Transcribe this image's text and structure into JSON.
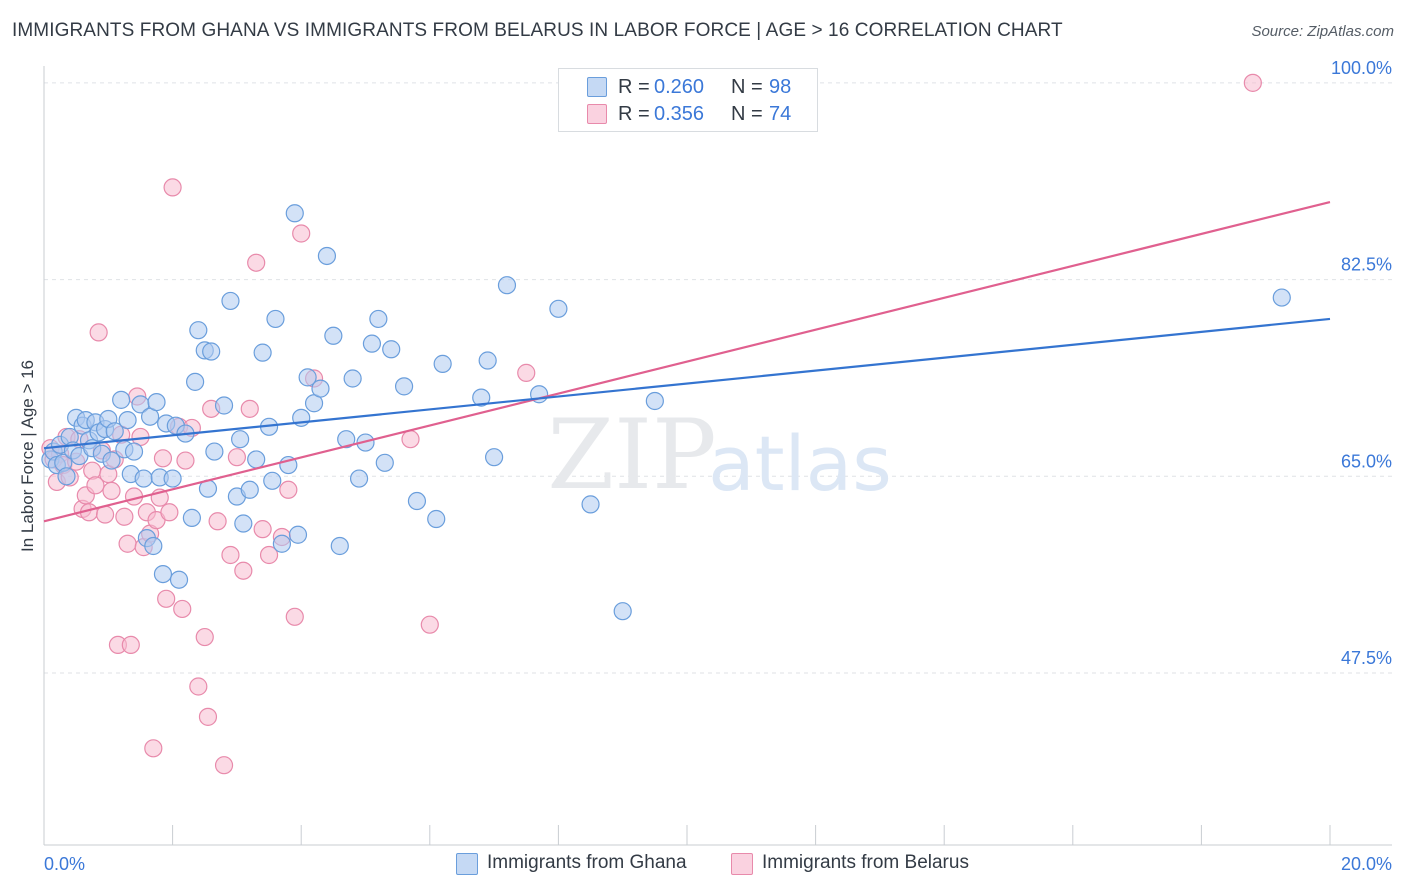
{
  "header": {
    "title": "IMMIGRANTS FROM GHANA VS IMMIGRANTS FROM BELARUS IN LABOR FORCE | AGE > 16 CORRELATION CHART",
    "source": "Source: ZipAtlas.com"
  },
  "watermark": {
    "zip": "ZIP",
    "atlas": "atlas"
  },
  "legend": {
    "r_label": "R =",
    "n_label": "N =",
    "series": [
      {
        "r": "0.260",
        "n": "98"
      },
      {
        "r": "0.356",
        "n": "74"
      }
    ]
  },
  "bottom_legend": {
    "ghana": "Immigrants from Ghana",
    "belarus": "Immigrants from Belarus"
  },
  "colors": {
    "ghana_fill": "#aecbf0",
    "ghana_stroke": "#6a9edc",
    "ghana_line": "#3474d0",
    "belarus_fill": "#f7bcd0",
    "belarus_stroke": "#e88aab",
    "belarus_line": "#e0608f",
    "tick_label": "#3b78d8",
    "grid": "#dfe2e6"
  },
  "chart_data": {
    "type": "scatter",
    "title": "IMMIGRANTS FROM GHANA VS IMMIGRANTS FROM BELARUS IN LABOR FORCE | AGE > 16 CORRELATION CHART",
    "xlabel": "",
    "ylabel": "In Labor Force | Age > 16",
    "xlim": [
      0,
      20
    ],
    "ylim": [
      32.2,
      101.5
    ],
    "x_tick_labels": [
      "0.0%",
      "20.0%"
    ],
    "y_ticks": [
      47.5,
      65.0,
      82.5,
      100.0
    ],
    "y_tick_labels": [
      "47.5%",
      "65.0%",
      "82.5%",
      "100.0%"
    ],
    "grid": "horizontal dashed",
    "legend_position": "top-center",
    "series": [
      {
        "name": "Immigrants from Ghana",
        "r": 0.26,
        "n": 98,
        "trend": {
          "x": [
            0,
            20
          ],
          "y": [
            67.5,
            79.0
          ]
        },
        "points": [
          [
            0.1,
            66.5
          ],
          [
            0.15,
            67.2
          ],
          [
            0.2,
            66.0
          ],
          [
            0.25,
            67.8
          ],
          [
            0.3,
            66.2
          ],
          [
            0.35,
            65.0
          ],
          [
            0.4,
            68.5
          ],
          [
            0.45,
            67.3
          ],
          [
            0.5,
            70.2
          ],
          [
            0.55,
            66.8
          ],
          [
            0.6,
            69.5
          ],
          [
            0.65,
            70.0
          ],
          [
            0.7,
            68.2
          ],
          [
            0.75,
            67.5
          ],
          [
            0.8,
            69.8
          ],
          [
            0.85,
            68.9
          ],
          [
            0.9,
            67.0
          ],
          [
            0.95,
            69.2
          ],
          [
            1.0,
            70.1
          ],
          [
            1.05,
            66.4
          ],
          [
            1.1,
            69.0
          ],
          [
            1.2,
            71.8
          ],
          [
            1.25,
            67.4
          ],
          [
            1.3,
            70.0
          ],
          [
            1.35,
            65.2
          ],
          [
            1.4,
            67.2
          ],
          [
            1.5,
            71.4
          ],
          [
            1.55,
            64.8
          ],
          [
            1.6,
            59.5
          ],
          [
            1.65,
            70.3
          ],
          [
            1.7,
            58.8
          ],
          [
            1.75,
            71.6
          ],
          [
            1.8,
            64.9
          ],
          [
            1.85,
            56.3
          ],
          [
            1.9,
            69.7
          ],
          [
            2.0,
            64.8
          ],
          [
            2.05,
            69.5
          ],
          [
            2.1,
            55.8
          ],
          [
            2.2,
            68.8
          ],
          [
            2.3,
            61.3
          ],
          [
            2.35,
            73.4
          ],
          [
            2.4,
            78.0
          ],
          [
            2.5,
            76.2
          ],
          [
            2.55,
            63.9
          ],
          [
            2.6,
            76.1
          ],
          [
            2.65,
            67.2
          ],
          [
            2.8,
            71.3
          ],
          [
            2.9,
            80.6
          ],
          [
            3.0,
            63.2
          ],
          [
            3.05,
            68.3
          ],
          [
            3.1,
            60.8
          ],
          [
            3.2,
            63.8
          ],
          [
            3.3,
            66.5
          ],
          [
            3.4,
            76.0
          ],
          [
            3.5,
            69.4
          ],
          [
            3.55,
            64.6
          ],
          [
            3.6,
            79.0
          ],
          [
            3.7,
            59.0
          ],
          [
            3.8,
            66.0
          ],
          [
            3.9,
            88.4
          ],
          [
            3.95,
            59.8
          ],
          [
            4.0,
            70.2
          ],
          [
            4.1,
            73.8
          ],
          [
            4.2,
            71.5
          ],
          [
            4.3,
            72.8
          ],
          [
            4.4,
            84.6
          ],
          [
            4.5,
            77.5
          ],
          [
            4.6,
            58.8
          ],
          [
            4.7,
            68.3
          ],
          [
            4.8,
            73.7
          ],
          [
            4.9,
            64.8
          ],
          [
            5.0,
            68.0
          ],
          [
            5.1,
            76.8
          ],
          [
            5.2,
            79.0
          ],
          [
            5.3,
            66.2
          ],
          [
            5.4,
            76.3
          ],
          [
            5.6,
            73.0
          ],
          [
            5.8,
            62.8
          ],
          [
            6.1,
            61.2
          ],
          [
            6.2,
            75.0
          ],
          [
            6.8,
            72.0
          ],
          [
            6.9,
            75.3
          ],
          [
            7.0,
            66.7
          ],
          [
            7.2,
            82.0
          ],
          [
            7.7,
            72.3
          ],
          [
            8.0,
            79.9
          ],
          [
            8.5,
            62.5
          ],
          [
            9.0,
            53.0
          ],
          [
            9.5,
            71.7
          ],
          [
            19.25,
            80.9
          ]
        ]
      },
      {
        "name": "Immigrants from Belarus",
        "r": 0.356,
        "n": 74,
        "trend": {
          "x": [
            0,
            20
          ],
          "y": [
            61.0,
            89.4
          ]
        },
        "points": [
          [
            0.1,
            67.5
          ],
          [
            0.15,
            66.5
          ],
          [
            0.2,
            64.5
          ],
          [
            0.25,
            67.0
          ],
          [
            0.3,
            66.0
          ],
          [
            0.35,
            68.5
          ],
          [
            0.4,
            64.9
          ],
          [
            0.5,
            66.3
          ],
          [
            0.55,
            68.3
          ],
          [
            0.6,
            62.1
          ],
          [
            0.65,
            63.3
          ],
          [
            0.7,
            61.8
          ],
          [
            0.75,
            65.5
          ],
          [
            0.8,
            64.2
          ],
          [
            0.85,
            77.8
          ],
          [
            0.9,
            67.3
          ],
          [
            0.95,
            61.6
          ],
          [
            1.0,
            65.2
          ],
          [
            1.05,
            63.7
          ],
          [
            1.1,
            66.5
          ],
          [
            1.15,
            50.0
          ],
          [
            1.2,
            68.7
          ],
          [
            1.25,
            61.4
          ],
          [
            1.3,
            59.0
          ],
          [
            1.35,
            50.0
          ],
          [
            1.4,
            63.2
          ],
          [
            1.45,
            72.1
          ],
          [
            1.5,
            68.5
          ],
          [
            1.55,
            58.7
          ],
          [
            1.6,
            61.8
          ],
          [
            1.65,
            59.9
          ],
          [
            1.7,
            40.8
          ],
          [
            1.75,
            61.1
          ],
          [
            1.8,
            63.1
          ],
          [
            1.85,
            66.6
          ],
          [
            1.9,
            54.1
          ],
          [
            1.95,
            61.8
          ],
          [
            2.0,
            90.7
          ],
          [
            2.1,
            69.4
          ],
          [
            2.15,
            53.2
          ],
          [
            2.2,
            66.4
          ],
          [
            2.3,
            69.3
          ],
          [
            2.4,
            46.3
          ],
          [
            2.5,
            50.7
          ],
          [
            2.55,
            43.6
          ],
          [
            2.6,
            71.0
          ],
          [
            2.7,
            61.0
          ],
          [
            2.8,
            39.3
          ],
          [
            2.9,
            58.0
          ],
          [
            3.0,
            66.7
          ],
          [
            3.1,
            56.6
          ],
          [
            3.2,
            71.0
          ],
          [
            3.3,
            84.0
          ],
          [
            3.4,
            60.3
          ],
          [
            3.5,
            58.0
          ],
          [
            3.7,
            59.6
          ],
          [
            3.8,
            63.8
          ],
          [
            3.9,
            52.5
          ],
          [
            4.0,
            86.6
          ],
          [
            4.2,
            73.7
          ],
          [
            5.7,
            68.3
          ],
          [
            6.0,
            51.8
          ],
          [
            7.5,
            74.2
          ],
          [
            18.8,
            100.0
          ]
        ]
      }
    ]
  }
}
